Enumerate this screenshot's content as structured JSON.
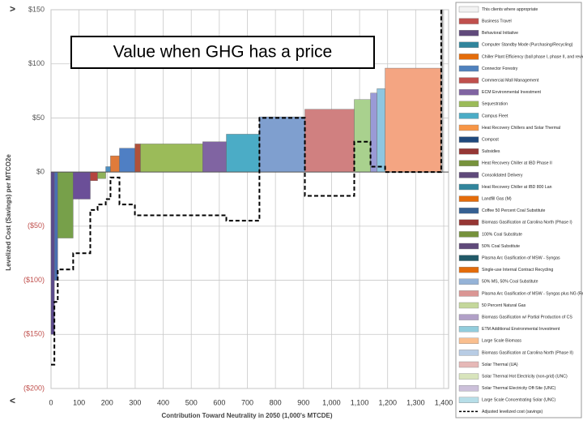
{
  "chart_data": {
    "type": "macc",
    "annotation": "Value when GHG has a price",
    "y_label": "Levelized Cost (Savings) per MTCO2e",
    "x_label": "Contribution Toward Neutrality in 2050 (1,000's MTCDE)",
    "top_marker": ">",
    "bottom_marker": "<",
    "xlim": [
      0,
      1400
    ],
    "xticks": [
      0,
      100,
      200,
      300,
      400,
      500,
      600,
      700,
      800,
      900,
      {
        "value": 1000,
        "label": "1,000"
      },
      {
        "value": 1100,
        "label": "1,100"
      },
      {
        "value": 1200,
        "label": "1,200"
      },
      {
        "value": 1300,
        "label": "1,300"
      },
      {
        "value": 1400,
        "label": "1,400"
      }
    ],
    "ylim": [
      -200,
      150
    ],
    "yticks": [
      {
        "value": -200,
        "label": "($200)"
      },
      {
        "value": -150,
        "label": "($150)"
      },
      {
        "value": -100,
        "label": "($100)"
      },
      {
        "value": -50,
        "label": "($50)"
      },
      {
        "value": 0,
        "label": "$0"
      },
      {
        "value": 50,
        "label": "$50"
      },
      {
        "value": 100,
        "label": "$100"
      },
      {
        "value": 150,
        "label": "$150"
      }
    ],
    "grid": true,
    "widths": [
      12,
      12,
      55,
      61,
      26,
      29,
      17,
      32,
      55,
      20,
      222,
      84,
      118,
      162,
      176,
      58,
      23,
      29,
      200,
      6
    ],
    "values": [
      -150,
      -100,
      -61,
      -25,
      -8,
      -6,
      5,
      15,
      22,
      26,
      26,
      28,
      35,
      51,
      58,
      67,
      73,
      77,
      96,
      150
    ],
    "colors": [
      "#5b4a8b",
      "#4a6fb0",
      "#77a04a",
      "#6b4f98",
      "#b5443f",
      "#8fb25a",
      "#4d8fc0",
      "#e07b3a",
      "#4f7fc4",
      "#b0513b",
      "#9bbb59",
      "#8064a2",
      "#4bacc6",
      "#7f9fcf",
      "#d08080",
      "#a9d18e",
      "#9a9ad6",
      "#8ec6e0",
      "#f4a582",
      "#bfbfbf"
    ],
    "adjusted": {
      "name": "Adjusted levelized cost (savings)",
      "values": [
        -178,
        -120,
        -90,
        -75,
        -35,
        -30,
        -25,
        -5,
        -30,
        -40,
        -40,
        -40,
        -45,
        50,
        -22,
        28,
        5,
        5,
        0,
        150
      ]
    },
    "legend": [
      {
        "name": "This clients where appropriate",
        "color": "#f2f2f2"
      },
      {
        "name": "Business Travel",
        "color": "#c0504d"
      },
      {
        "name": "Behavioral Initiative",
        "color": "#604a7b"
      },
      {
        "name": "Computer Standby Mode (Purchasing/Recycling)",
        "color": "#31859c"
      },
      {
        "name": "Chiller Plant Efficiency (ball phase I, phase II, and reviews)",
        "color": "#e46c0a"
      },
      {
        "name": "Connector Forestry",
        "color": "#4f81bd"
      },
      {
        "name": "Commercial Mall Management",
        "color": "#c0504d"
      },
      {
        "name": "ECM Environmental Investment",
        "color": "#8064a2"
      },
      {
        "name": "Sequestration",
        "color": "#9bbb59"
      },
      {
        "name": "Campus Fleet",
        "color": "#4bacc6"
      },
      {
        "name": "Heat Recovery Chillers and Solar Thermal",
        "color": "#f79646"
      },
      {
        "name": "Compost",
        "color": "#1f497d"
      },
      {
        "name": "Subsidies",
        "color": "#953735"
      },
      {
        "name": "Heat Recovery Chiller at IBD Phase II",
        "color": "#77933c"
      },
      {
        "name": "Consolidated Delivery",
        "color": "#5f497a"
      },
      {
        "name": "Heat Recovery Chiller at IBD 800 Lan",
        "color": "#31859c"
      },
      {
        "name": "Landfill Gas (M)",
        "color": "#e46c0a"
      },
      {
        "name": "Coffee 50 Percent Coal Substitute",
        "color": "#366092"
      },
      {
        "name": "Biomass Gasification at Carolina North (Phase I)",
        "color": "#963634"
      },
      {
        "name": "100% Coal Substitute",
        "color": "#76923c"
      },
      {
        "name": "50% Coal Substitute",
        "color": "#5f497a"
      },
      {
        "name": "Plasma Arc Gasification of MSW - Syngas",
        "color": "#215967"
      },
      {
        "name": "Single-use Internal Contract Recycling",
        "color": "#e26b0a"
      },
      {
        "name": "50% MS, 50% Coal Substitute",
        "color": "#95b3d7"
      },
      {
        "name": "Plasma Arc Gasification of MSW - Syngas plus NG (Replace All Coal)",
        "color": "#da9694"
      },
      {
        "name": "50 Percent Natural Gas",
        "color": "#c4d79b"
      },
      {
        "name": "Biomass Gasification w/ Partial Production of CS",
        "color": "#b1a0c7"
      },
      {
        "name": "ETM Additional Environmental Investment",
        "color": "#92cddc"
      },
      {
        "name": "Large Scale Biomass",
        "color": "#fabf8f"
      },
      {
        "name": "Biomass Gasification at Carolina North (Phase II)",
        "color": "#b8cce4"
      },
      {
        "name": "Solar Thermal (UA)",
        "color": "#e6b8b7"
      },
      {
        "name": "Solar Thermal Hot Electricity (non-grid) (UNC)",
        "color": "#d8e4bc"
      },
      {
        "name": "Solar Thermal Electricity Off-Site (UNC)",
        "color": "#ccc0da"
      },
      {
        "name": "Large Scale Concentrating Solar (UNC)",
        "color": "#b7dee8"
      }
    ]
  }
}
